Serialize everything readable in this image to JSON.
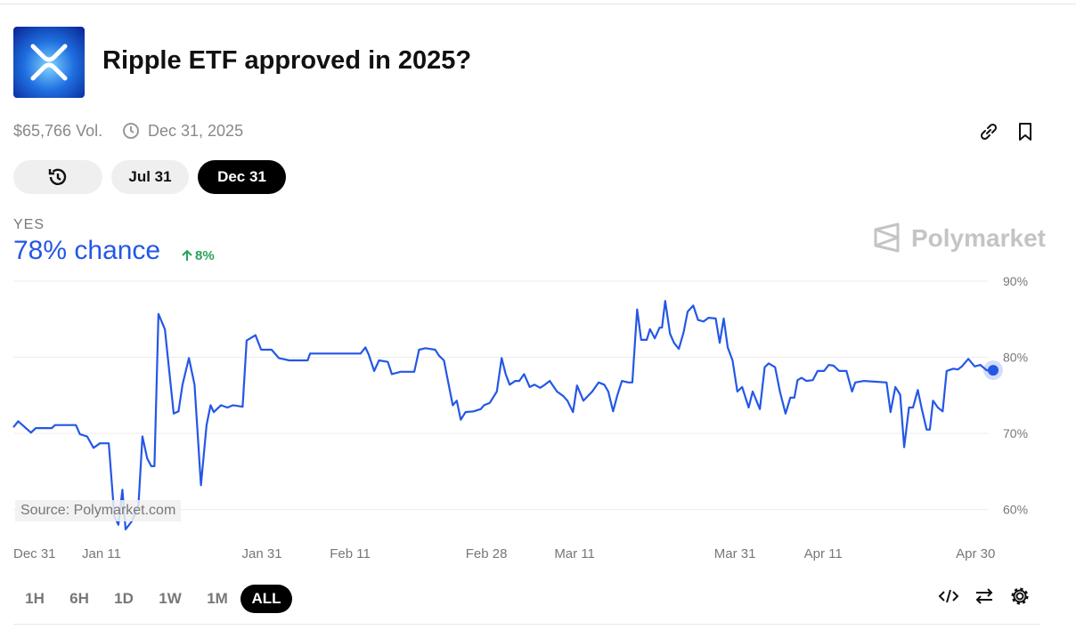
{
  "header": {
    "title": "Ripple ETF approved in 2025?",
    "volume": "$65,766 Vol.",
    "end_date": "Dec 31, 2025"
  },
  "date_tabs": [
    "Jul 31",
    "Dec 31"
  ],
  "outcome": {
    "label": "YES",
    "chance": "78% chance",
    "change": "8%"
  },
  "brand": "Polymarket",
  "source": "Source: Polymarket.com",
  "ranges": [
    "1H",
    "6H",
    "1D",
    "1W",
    "1M",
    "ALL"
  ],
  "chart_data": {
    "type": "line",
    "x": [
      0,
      0.6,
      2.2,
      2.8,
      4.8,
      5.2,
      7.8,
      8.3,
      9.2,
      10,
      10.8,
      11.9,
      12.6,
      13.1,
      13.6,
      14,
      14.8,
      15.6,
      16.1,
      16.7,
      17.2,
      17.6,
      18.1,
      18.9,
      20,
      20.6,
      21.1,
      21.9,
      22.6,
      23.4,
      24.1,
      24.6,
      25,
      25.9,
      26.7,
      27.4,
      28.6,
      29.1,
      30.2,
      30.9,
      32.2,
      33.1,
      34.4,
      36.7,
      37,
      38.9,
      43.3,
      43.9,
      44.3,
      45,
      45.6,
      46.7,
      47.2,
      48.3,
      50,
      50.6,
      51.4,
      52.6,
      53.1,
      53.7,
      54.2,
      54.8,
      55.3,
      55.8,
      56.4,
      57.4,
      58.3,
      58.7,
      59.4,
      60.3,
      60.9,
      61.4,
      61.9,
      62.6,
      63.1,
      63.7,
      64.4,
      65,
      65.7,
      66.3,
      66.9,
      67.8,
      68.6,
      69.1,
      69.8,
      70.3,
      71.1,
      72.2,
      73,
      73.7,
      74.2,
      74.8,
      75.3,
      75.9,
      76.7,
      77.2,
      77.8,
      78.3,
      79,
      79.4,
      80,
      80.6,
      80.9,
      81.3,
      81.9,
      82.4,
      83,
      83.6,
      84.1,
      84.8,
      85.4,
      86.1,
      86.7,
      87.6,
      88.1,
      88.6,
      89.1,
      89.7,
      90.3,
      90.9,
      91.7,
      92.2,
      93.1,
      93.7,
      94.2,
      95,
      95.6,
      96.3,
      96.9,
      97.4,
      97.8,
      98.3,
      98.9,
      99.7,
      100.3,
      101.1,
      101.7,
      102.3,
      103,
      103.9,
      104.6,
      105,
      106.1,
      108.9,
      109.4,
      110,
      110.6,
      111.1,
      111.7,
      112.2,
      112.8,
      113.3,
      113.9,
      114.3,
      114.7,
      115.3,
      115.9,
      116.4,
      117.2,
      117.8,
      118.3,
      119.1,
      119.9,
      120.6,
      121.4,
      122.2
    ],
    "series": [
      {
        "name": "YES",
        "color": "#2457e6",
        "values": [
          70.8,
          71.6,
          70.1,
          70.7,
          70.7,
          71.1,
          71.1,
          69.9,
          69.6,
          68.1,
          68.7,
          68.7,
          59.1,
          58,
          62.6,
          57.4,
          58.5,
          60.5,
          69.6,
          66.7,
          65.7,
          65.7,
          85.7,
          83.7,
          72.6,
          72.9,
          76.4,
          79.9,
          76.4,
          63.2,
          71.1,
          73.7,
          72.8,
          73.7,
          73.4,
          73.7,
          73.5,
          82.2,
          82.9,
          81,
          81,
          79.9,
          79.6,
          79.6,
          80.5,
          80.5,
          80.5,
          81.3,
          80.4,
          78.2,
          79.6,
          79.4,
          77.8,
          78.1,
          78.1,
          81,
          81.2,
          81,
          80.2,
          79.6,
          76.9,
          73.7,
          74.3,
          71.8,
          72.8,
          72.9,
          73.2,
          73.7,
          74,
          75.5,
          79.9,
          77.8,
          76.4,
          76.9,
          76.9,
          77.8,
          76.1,
          76.4,
          76,
          76.4,
          76.9,
          75.5,
          74.9,
          74.3,
          72.8,
          76.3,
          74.3,
          75.5,
          76.7,
          76.4,
          75.5,
          72.9,
          74.9,
          76.9,
          76.7,
          76.7,
          86.3,
          82.3,
          82.3,
          83.7,
          82.5,
          83.9,
          83.9,
          87.4,
          83.1,
          81.9,
          81.1,
          83.3,
          86,
          86.8,
          84.9,
          84.7,
          85.2,
          85.1,
          81.9,
          85.1,
          81.3,
          79.6,
          75.5,
          76.1,
          73.4,
          75.5,
          73.2,
          78.7,
          79.2,
          78.7,
          75.5,
          72.6,
          74.7,
          74.7,
          77,
          77.3,
          76.9,
          77,
          78.2,
          78.2,
          79,
          78.9,
          78.2,
          78.2,
          75.5,
          76.7,
          76.9,
          76.7,
          72.8,
          76.1,
          75.1,
          68.2,
          73.4,
          73.4,
          75.7,
          73.2,
          70.5,
          70.5,
          74.3,
          73.4,
          72.9,
          78.2,
          78.5,
          78.4,
          78.8,
          79.8,
          78.8,
          79,
          78.3,
          78.3
        ]
      }
    ],
    "xlim": [
      0,
      122.2
    ],
    "xticks": [
      {
        "value": 0,
        "label": "Dec 31"
      },
      {
        "value": 11,
        "label": "Jan 11"
      },
      {
        "value": 31,
        "label": "Jan 31"
      },
      {
        "value": 42,
        "label": "Feb 11"
      },
      {
        "value": 59,
        "label": "Feb 28"
      },
      {
        "value": 70,
        "label": "Mar 11"
      },
      {
        "value": 90,
        "label": "Mar 31"
      },
      {
        "value": 101,
        "label": "Apr 11"
      },
      {
        "value": 120,
        "label": "Apr 30"
      }
    ],
    "ylim": [
      56.8,
      90
    ],
    "yticks": [
      {
        "value": 60,
        "label": "60%"
      },
      {
        "value": 70,
        "label": "70%"
      },
      {
        "value": 80,
        "label": "80%"
      },
      {
        "value": 90,
        "label": "90%"
      }
    ],
    "grid": true
  }
}
